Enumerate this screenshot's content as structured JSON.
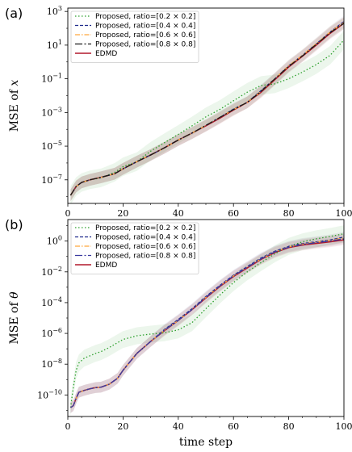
{
  "figure": {
    "xlabel": "time step"
  },
  "chart_data": [
    {
      "type": "line",
      "panel_label": "(a)",
      "ylabel_prefix": "MSE of ",
      "ylabel_symbol": "x",
      "yscale": "log",
      "xlim": [
        0,
        100
      ],
      "ylim_exp": [
        -8.4,
        3.2
      ],
      "xticks": [
        0,
        20,
        40,
        60,
        80,
        100
      ],
      "yticks_exp": [
        -7,
        -5,
        -3,
        -1,
        1,
        3
      ],
      "legend_position": "top-left",
      "series": [
        {
          "name": "Proposed, ratio=[0.2 × 0.2]",
          "color": "#2ca02c",
          "dash": "dotted",
          "x": [
            1,
            3,
            5,
            8,
            12,
            17,
            20,
            25,
            30,
            35,
            40,
            45,
            50,
            55,
            60,
            65,
            70,
            75,
            80,
            85,
            90,
            95,
            100
          ],
          "y": [
            1.2e-08,
            4e-08,
            7e-08,
            1e-07,
            1.3e-07,
            2.8e-07,
            6e-07,
            1.2e-06,
            5e-06,
            1.6e-05,
            5e-05,
            0.00016,
            0.00055,
            0.0015,
            0.005,
            0.016,
            0.04,
            0.05,
            0.1,
            0.25,
            0.7,
            2.5,
            20
          ]
        },
        {
          "name": "Proposed, ratio=[0.4 × 0.4]",
          "color": "#1f2a8c",
          "dash": "dashed",
          "x": [
            1,
            3,
            5,
            8,
            12,
            17,
            20,
            25,
            30,
            35,
            40,
            45,
            50,
            55,
            60,
            65,
            70,
            75,
            80,
            85,
            90,
            95,
            100
          ],
          "y": [
            1.2e-08,
            4e-08,
            7e-08,
            1e-07,
            1.4e-07,
            2.3e-07,
            4.5e-07,
            1.2e-06,
            3e-06,
            8e-06,
            2.3e-05,
            6e-05,
            0.00017,
            0.0005,
            0.0016,
            0.004,
            0.02,
            0.1,
            0.6,
            2.5,
            12,
            60,
            250
          ]
        },
        {
          "name": "Proposed, ratio=[0.6 × 0.6]",
          "color": "#ffa63c",
          "dash": "dashdot",
          "x": [
            1,
            3,
            5,
            8,
            12,
            17,
            20,
            25,
            30,
            35,
            40,
            45,
            50,
            55,
            60,
            65,
            70,
            75,
            80,
            85,
            90,
            95,
            100
          ],
          "y": [
            1.2e-08,
            4e-08,
            7e-08,
            1e-07,
            1.4e-07,
            2.3e-07,
            4.5e-07,
            1.2e-06,
            3e-06,
            8e-06,
            2.3e-05,
            6e-05,
            0.00017,
            0.0005,
            0.0015,
            0.004,
            0.018,
            0.1,
            0.6,
            2.5,
            12,
            60,
            220
          ]
        },
        {
          "name": "Proposed, ratio=[0.8 × 0.8]",
          "color": "#1a1a1a",
          "dash": "longdashdot",
          "x": [
            1,
            3,
            5,
            8,
            12,
            17,
            20,
            25,
            30,
            35,
            40,
            45,
            50,
            55,
            60,
            65,
            70,
            75,
            80,
            85,
            90,
            95,
            100
          ],
          "y": [
            1.2e-08,
            4e-08,
            7e-08,
            1e-07,
            1.4e-07,
            2.3e-07,
            4.5e-07,
            1.2e-06,
            3e-06,
            8e-06,
            2.3e-05,
            6e-05,
            0.00017,
            0.0005,
            0.0015,
            0.004,
            0.018,
            0.1,
            0.55,
            2.3,
            11,
            55,
            200
          ]
        },
        {
          "name": "EDMD",
          "color": "#b2182b",
          "dash": "solid",
          "x": [
            1,
            3,
            5,
            8,
            12,
            17,
            20,
            25,
            30,
            35,
            40,
            45,
            50,
            55,
            60,
            65,
            70,
            75,
            80,
            85,
            90,
            95,
            100
          ],
          "y": [
            1.2e-08,
            4e-08,
            7e-08,
            1e-07,
            1.4e-07,
            2.3e-07,
            4.5e-07,
            1.2e-06,
            3e-06,
            8e-06,
            2.3e-05,
            6e-05,
            0.00016,
            0.00045,
            0.0014,
            0.004,
            0.016,
            0.09,
            0.5,
            2.2,
            10,
            50,
            200
          ]
        }
      ]
    },
    {
      "type": "line",
      "panel_label": "(b)",
      "ylabel_prefix": "MSE of ",
      "ylabel_symbol": "θ",
      "yscale": "log",
      "xlim": [
        0,
        100
      ],
      "ylim_exp": [
        -11.4,
        1.4
      ],
      "xticks": [
        0,
        20,
        40,
        60,
        80,
        100
      ],
      "yticks_exp": [
        -10,
        -8,
        -6,
        -4,
        -2,
        0
      ],
      "legend_position": "top-left",
      "series": [
        {
          "name": "Proposed, ratio=[0.2 × 0.2]",
          "color": "#2ca02c",
          "dash": "dotted",
          "x": [
            1,
            2,
            3,
            4,
            6,
            8,
            10,
            12,
            15,
            18,
            20,
            25,
            30,
            35,
            40,
            45,
            50,
            55,
            60,
            65,
            70,
            75,
            80,
            85,
            90,
            95,
            100
          ],
          "y": [
            1.5e-11,
            3e-10,
            4e-09,
            1.2e-08,
            2.5e-08,
            3.5e-08,
            5e-08,
            6.5e-08,
            1.2e-07,
            2.5e-07,
            4e-07,
            7e-07,
            9e-07,
            1.1e-06,
            1.7e-06,
            5e-06,
            4e-05,
            0.0003,
            0.002,
            0.01,
            0.04,
            0.15,
            0.45,
            0.9,
            1.4,
            2,
            3
          ]
        },
        {
          "name": "Proposed, ratio=[0.4 × 0.4]",
          "color": "#1f2a8c",
          "dash": "dashed",
          "x": [
            1,
            2,
            3,
            4,
            6,
            8,
            10,
            12,
            15,
            18,
            20,
            25,
            30,
            35,
            40,
            45,
            50,
            55,
            60,
            65,
            70,
            75,
            80,
            85,
            90,
            95,
            100
          ],
          "y": [
            1.5e-11,
            2e-11,
            6e-11,
            1.5e-10,
            2e-10,
            2.5e-10,
            3e-10,
            3.2e-10,
            5e-10,
            1.2e-09,
            4e-09,
            5e-08,
            3e-07,
            1.8e-06,
            8e-06,
            4e-05,
            0.00025,
            0.0013,
            0.006,
            0.022,
            0.08,
            0.22,
            0.45,
            0.7,
            0.9,
            1.2,
            1.8
          ]
        },
        {
          "name": "Proposed, ratio=[0.6 × 0.6]",
          "color": "#ffa63c",
          "dash": "dashdot",
          "x": [
            1,
            2,
            3,
            4,
            6,
            8,
            10,
            12,
            15,
            18,
            20,
            25,
            30,
            35,
            40,
            45,
            50,
            55,
            60,
            65,
            70,
            75,
            80,
            85,
            90,
            95,
            100
          ],
          "y": [
            1.5e-11,
            2e-11,
            6e-11,
            1.5e-10,
            2e-10,
            2.5e-10,
            3e-10,
            3.2e-10,
            5e-10,
            1.2e-09,
            4e-09,
            5e-08,
            3e-07,
            1.6e-06,
            7e-06,
            3.5e-05,
            0.00022,
            0.0012,
            0.0055,
            0.02,
            0.07,
            0.2,
            0.42,
            0.65,
            0.85,
            1.1,
            1.6
          ]
        },
        {
          "name": "Proposed, ratio=[0.8 × 0.8]",
          "color": "#3a3aa0",
          "dash": "longdashdot",
          "x": [
            1,
            2,
            3,
            4,
            6,
            8,
            10,
            12,
            15,
            18,
            20,
            25,
            30,
            35,
            40,
            45,
            50,
            55,
            60,
            65,
            70,
            75,
            80,
            85,
            90,
            95,
            100
          ],
          "y": [
            1.5e-11,
            2e-11,
            6e-11,
            1.5e-10,
            2e-10,
            2.5e-10,
            3e-10,
            3.2e-10,
            5e-10,
            1.2e-09,
            4e-09,
            5e-08,
            3e-07,
            1.6e-06,
            7e-06,
            3.5e-05,
            0.00022,
            0.0012,
            0.0055,
            0.02,
            0.07,
            0.2,
            0.4,
            0.6,
            0.8,
            1.0,
            1.4
          ]
        },
        {
          "name": "EDMD",
          "color": "#b2182b",
          "dash": "solid",
          "x": [
            1,
            2,
            3,
            4,
            6,
            8,
            10,
            12,
            15,
            18,
            20,
            25,
            30,
            35,
            40,
            45,
            50,
            55,
            60,
            65,
            70,
            75,
            80,
            85,
            90,
            95,
            100
          ],
          "y": [
            1.5e-11,
            2e-11,
            6e-11,
            1.5e-10,
            2e-10,
            2.5e-10,
            3e-10,
            3.2e-10,
            5e-10,
            1.2e-09,
            4e-09,
            5e-08,
            3e-07,
            1.5e-06,
            7e-06,
            3.5e-05,
            0.0002,
            0.0011,
            0.005,
            0.018,
            0.065,
            0.18,
            0.38,
            0.55,
            0.7,
            0.9,
            1.2
          ]
        }
      ]
    }
  ]
}
